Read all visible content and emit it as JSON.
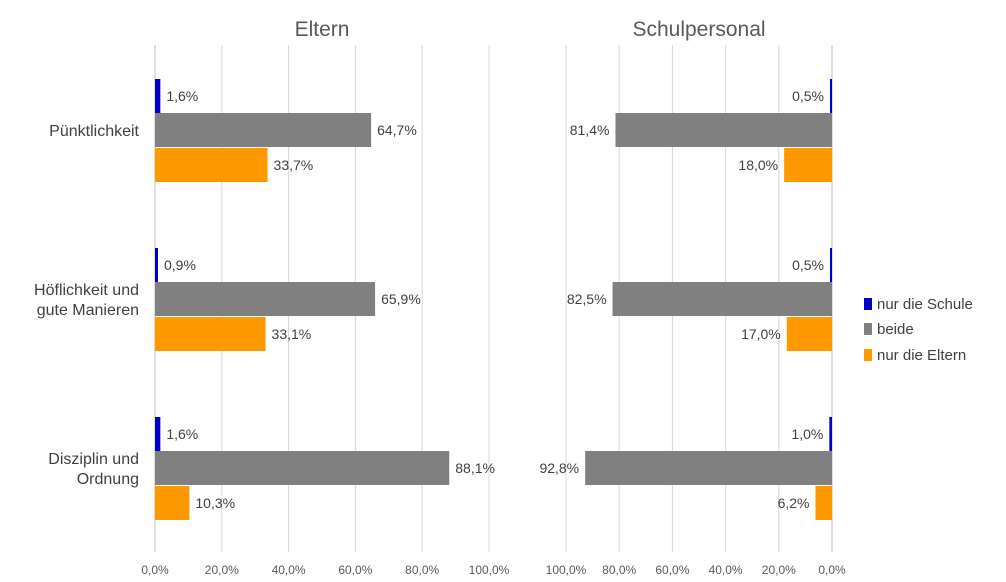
{
  "chart_data": {
    "type": "bar",
    "orientation": "horizontal",
    "categories": [
      "Pünktlichkeit",
      "Höflichkeit und gute Manieren",
      "Disziplin und Ordnung"
    ],
    "category_lines": [
      [
        "Pünktlichkeit"
      ],
      [
        "Höflichkeit und",
        "gute Manieren"
      ],
      [
        "Disziplin und",
        "Ordnung"
      ]
    ],
    "series": [
      {
        "name": "nur die Schule",
        "color": "#0000CC"
      },
      {
        "name": "beide",
        "color": "#808080"
      },
      {
        "name": "nur die Eltern",
        "color": "#FF9900"
      }
    ],
    "panels": [
      {
        "title": "Eltern",
        "direction": "left-to-right",
        "values": {
          "nur die Schule": [
            1.6,
            0.9,
            1.6
          ],
          "beide": [
            64.7,
            65.9,
            88.1
          ],
          "nur die Eltern": [
            33.7,
            33.1,
            10.3
          ]
        },
        "labels": {
          "nur die Schule": [
            "1,6%",
            "0,9%",
            "1,6%"
          ],
          "beide": [
            "64,7%",
            "65,9%",
            "88,1%"
          ],
          "nur die Eltern": [
            "33,7%",
            "33,1%",
            "10,3%"
          ]
        },
        "ticks": [
          "0,0%",
          "20,0%",
          "40,0%",
          "60,0%",
          "80,0%",
          "100,0%"
        ]
      },
      {
        "title": "Schulpersonal",
        "direction": "right-to-left",
        "values": {
          "nur die Schule": [
            0.5,
            0.5,
            1.0
          ],
          "beide": [
            81.4,
            82.5,
            92.8
          ],
          "nur die Eltern": [
            18.0,
            17.0,
            6.2
          ]
        },
        "labels": {
          "nur die Schule": [
            "0,5%",
            "0,5%",
            "1,0%"
          ],
          "beide": [
            "81,4%",
            "82,5%",
            "92,8%"
          ],
          "nur die Eltern": [
            "18,0%",
            "17,0%",
            "6,2%"
          ]
        },
        "ticks": [
          "100,0%",
          "80,0%",
          "60,0%",
          "40,0%",
          "20,0%",
          "0,0%"
        ]
      }
    ],
    "xlim": [
      0,
      100
    ],
    "grid": true,
    "legend_position": "right"
  }
}
